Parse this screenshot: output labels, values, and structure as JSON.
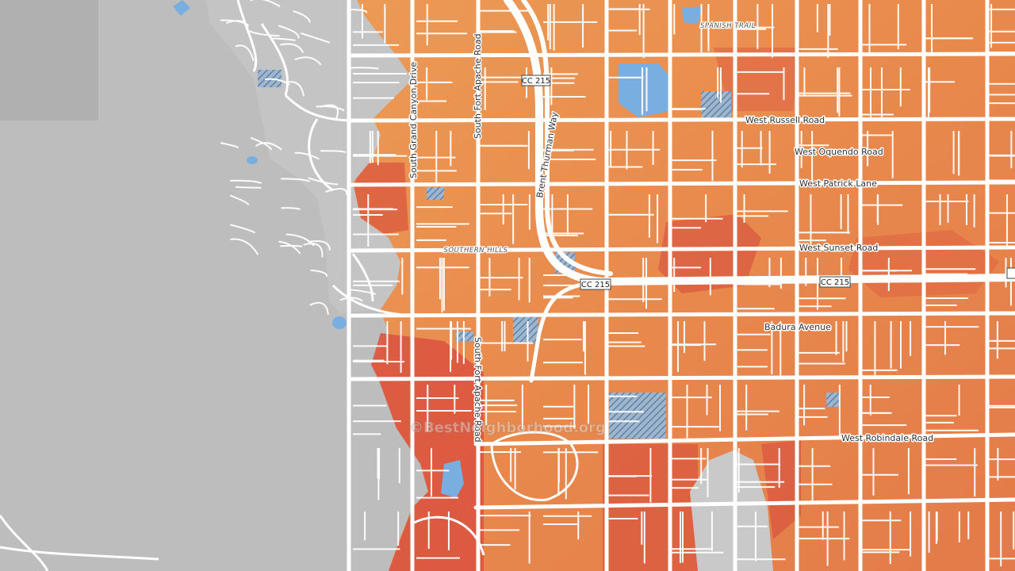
{
  "map": {
    "colors": {
      "background": "#bdbdbd",
      "overlay_orange": "#e8914f",
      "overlay_red": "#dc5a3c",
      "overlay_darkred": "#d94c3a",
      "water": "#76a8dc",
      "road": "#ffffff",
      "built_up_gray": "#c8c8c8",
      "hatch": "#6f8fb0"
    },
    "watermark": "©BestNeighborhood.org",
    "area_labels": {
      "spanish_trail": "SPANISH TRAIL",
      "southern_hills": "SOUTHERN HILLS"
    },
    "shields": {
      "cc215_north": "CC 215",
      "cc215_center": "CC 215",
      "cc215_east": "CC 215"
    },
    "roads": {
      "south_grand_canyon_drive": "South Grand Canyon Drive",
      "south_fort_apache_road_north": "South Fort Apache Road",
      "south_fort_apache_road_south": "South Fort Apache Road",
      "brent_thurman_way": "Brent Thurman Way",
      "west_russell_road": "West Russell Road",
      "west_oquendo_road": "West Oquendo Road",
      "west_patrick_lane": "West Patrick Lane",
      "west_sunset_road": "West Sunset Road",
      "badura_avenue": "Badura Avenue",
      "west_robindale_road": "West Robindale Road"
    }
  }
}
